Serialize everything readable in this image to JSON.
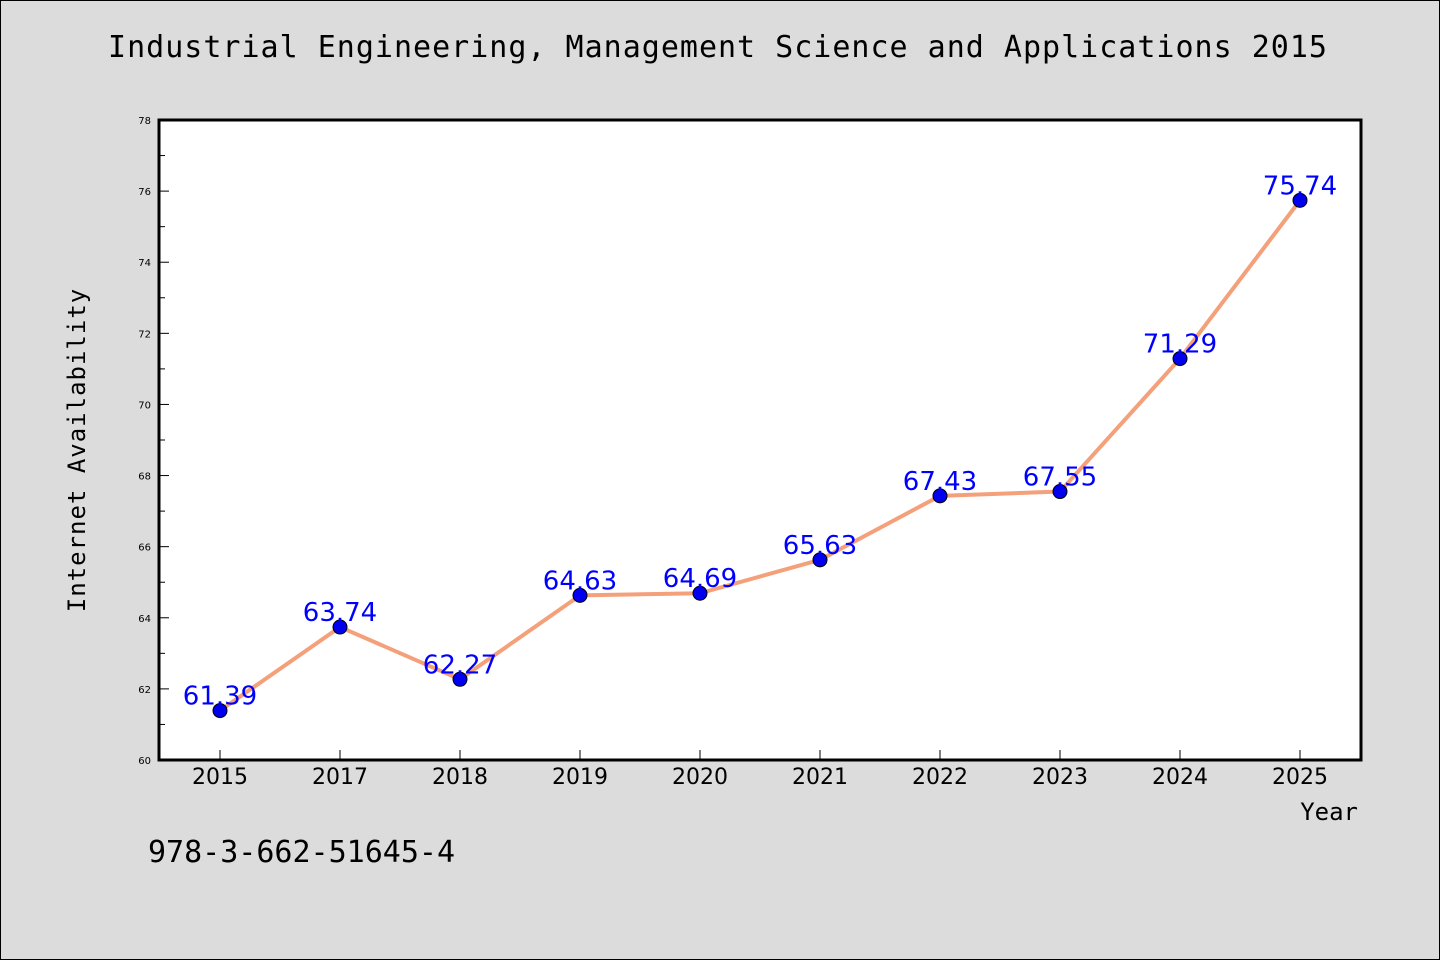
{
  "chart_data": {
    "type": "line",
    "title": "Industrial Engineering, Management Science and Applications 2015",
    "xlabel": "Year",
    "ylabel": "Internet Availability",
    "ylim": [
      60,
      78
    ],
    "yticks": [
      "60",
      "62",
      "64",
      "66",
      "68",
      "70",
      "72",
      "74",
      "76",
      "78"
    ],
    "categories": [
      "2015",
      "2017",
      "2018",
      "2019",
      "2020",
      "2021",
      "2022",
      "2023",
      "2024",
      "2025"
    ],
    "series": [
      {
        "values": [
          61.39,
          63.74,
          62.27,
          64.63,
          64.69,
          65.63,
          67.43,
          67.55,
          71.29,
          75.74
        ],
        "labels": [
          "61.39",
          "63.74",
          "62.27",
          "64.63",
          "64.69",
          "65.63",
          "67.43",
          "67.55",
          "71.29",
          "75.74"
        ],
        "line_color": "#f4a07a",
        "marker_color": "#0000ee",
        "label_color": "#0000ff"
      }
    ],
    "grid": false,
    "background": "#dcdcdc",
    "plot_background": "#ffffff"
  },
  "footer": {
    "isbn": "978-3-662-51645-4"
  }
}
